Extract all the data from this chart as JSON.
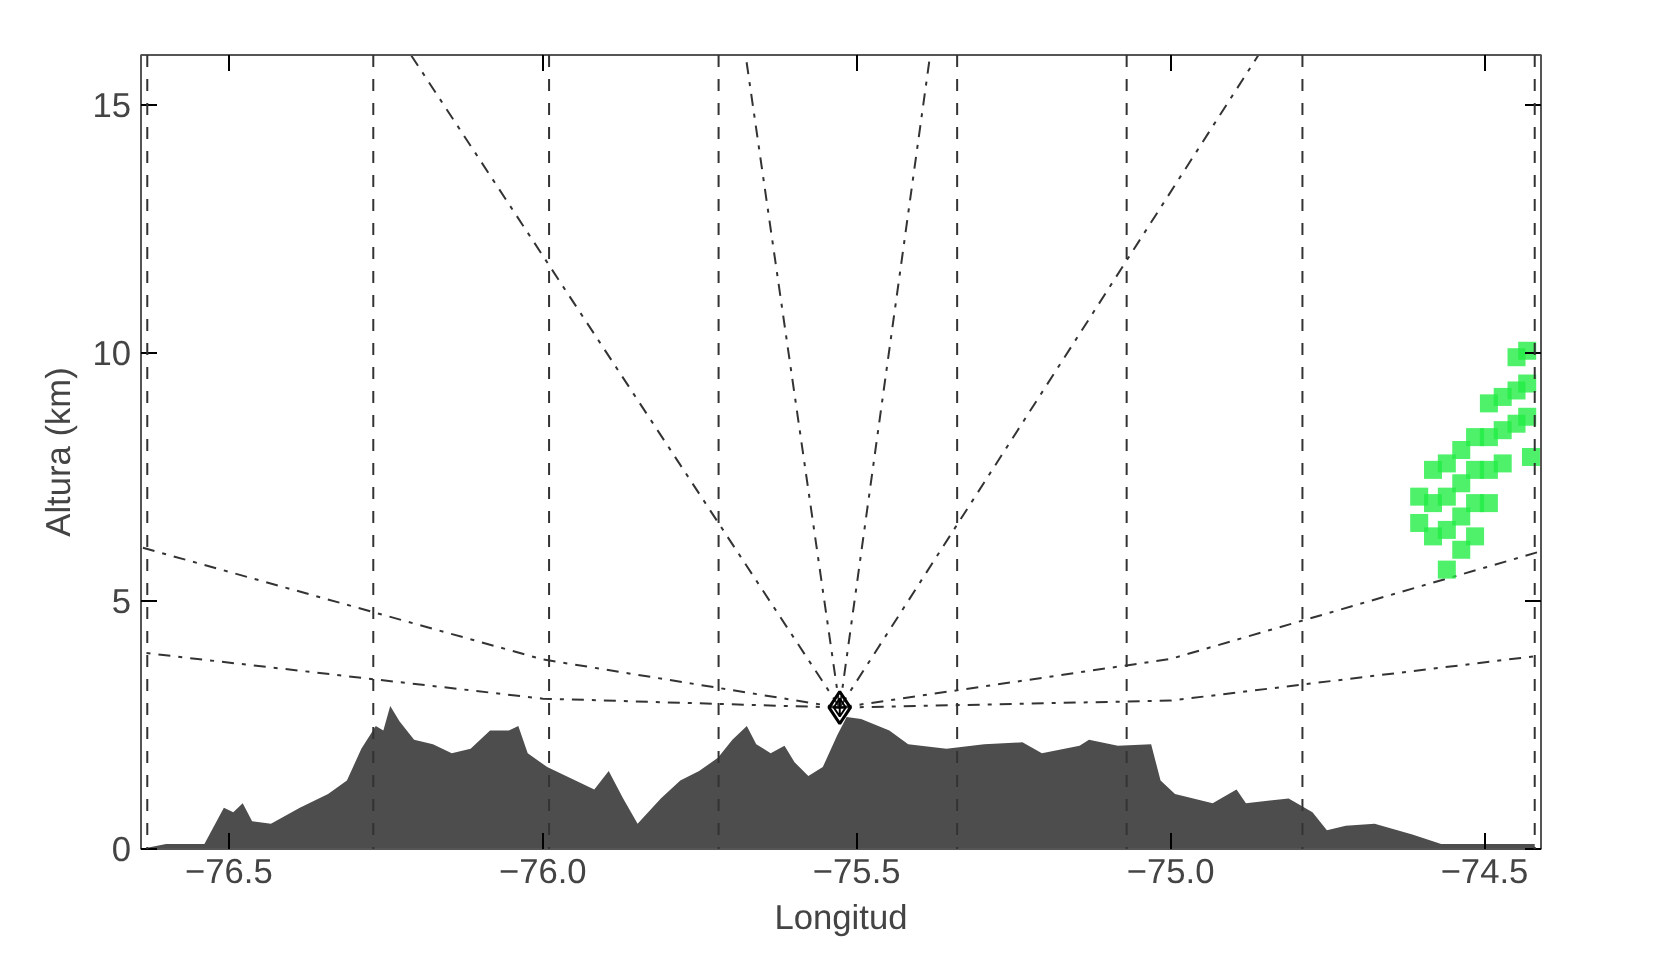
{
  "chart_data": {
    "type": "area",
    "xlabel": "Longitud",
    "ylabel": "Altura (km)",
    "xlim": [
      -76.64,
      -74.41
    ],
    "ylim": [
      0,
      16
    ],
    "xticks": [
      {
        "value": -76.5,
        "label": "−76.5"
      },
      {
        "value": -76.0,
        "label": "−76.0"
      },
      {
        "value": -75.5,
        "label": "−75.5"
      },
      {
        "value": -75.0,
        "label": "−75.0"
      },
      {
        "value": -74.5,
        "label": "−74.5"
      }
    ],
    "yticks": [
      0,
      5,
      10,
      15
    ],
    "grid": false,
    "ref_lines": [
      {
        "axis": "x",
        "value": -76.63,
        "color": "#333333",
        "line_style": "dashed"
      },
      {
        "axis": "x",
        "value": -76.27,
        "color": "#333333",
        "line_style": "dashed"
      },
      {
        "axis": "x",
        "value": -75.99,
        "color": "#333333",
        "line_style": "dashed"
      },
      {
        "axis": "x",
        "value": -75.72,
        "color": "#333333",
        "line_style": "dashed"
      },
      {
        "axis": "x",
        "value": -75.34,
        "color": "#333333",
        "line_style": "dashed"
      },
      {
        "axis": "x",
        "value": -75.07,
        "color": "#333333",
        "line_style": "dashed"
      },
      {
        "axis": "x",
        "value": -74.79,
        "color": "#333333",
        "line_style": "dashed"
      },
      {
        "axis": "x",
        "value": -74.42,
        "color": "#333333",
        "line_style": "dashed"
      }
    ],
    "series": [
      {
        "color": "#4d4d4d",
        "x": [
          -76.64,
          -76.6,
          -76.539,
          -76.508,
          -76.493,
          -76.478,
          -76.463,
          -76.433,
          -76.387,
          -76.342,
          -76.312,
          -76.289,
          -76.266,
          -76.254,
          -76.243,
          -76.228,
          -76.205,
          -76.175,
          -76.145,
          -76.115,
          -76.084,
          -76.054,
          -76.039,
          -76.024,
          -75.993,
          -75.948,
          -75.918,
          -75.895,
          -75.872,
          -75.849,
          -75.812,
          -75.781,
          -75.751,
          -75.721,
          -75.698,
          -75.675,
          -75.66,
          -75.637,
          -75.615,
          -75.599,
          -75.577,
          -75.554,
          -75.531,
          -75.516,
          -75.493,
          -75.448,
          -75.418,
          -75.357,
          -75.297,
          -75.236,
          -75.205,
          -75.145,
          -75.13,
          -75.084,
          -75.031,
          -75.016,
          -74.993,
          -74.933,
          -74.895,
          -74.88,
          -74.812,
          -74.774,
          -74.751,
          -74.721,
          -74.675,
          -74.615,
          -74.569,
          -74.42
        ],
        "values": [
          0.0,
          0.1,
          0.1,
          0.83,
          0.74,
          0.92,
          0.56,
          0.51,
          0.83,
          1.11,
          1.38,
          2.02,
          2.48,
          2.39,
          2.88,
          2.57,
          2.2,
          2.11,
          1.93,
          2.02,
          2.39,
          2.39,
          2.48,
          1.93,
          1.65,
          1.38,
          1.2,
          1.57,
          1.02,
          0.51,
          1.02,
          1.38,
          1.57,
          1.84,
          2.2,
          2.48,
          2.11,
          1.93,
          2.08,
          1.75,
          1.47,
          1.65,
          2.29,
          2.66,
          2.62,
          2.39,
          2.11,
          2.02,
          2.11,
          2.15,
          1.93,
          2.08,
          2.2,
          2.08,
          2.11,
          1.38,
          1.11,
          0.92,
          1.2,
          0.92,
          1.02,
          0.74,
          0.38,
          0.47,
          0.51,
          0.29,
          0.1,
          0.1
        ]
      },
      {
        "type": "line",
        "color": "#333333",
        "line_style": "dashdot",
        "x": [
          -75.527,
          -76.0,
          -76.64
        ],
        "values": [
          2.85,
          3.03,
          3.96
        ]
      },
      {
        "type": "line",
        "color": "#333333",
        "line_style": "dashdot",
        "x": [
          -75.527,
          -76.0,
          -76.64
        ],
        "values": [
          2.85,
          3.82,
          6.08
        ]
      },
      {
        "type": "line",
        "color": "#333333",
        "line_style": "dashdot",
        "x": [
          -75.527,
          -76.21
        ],
        "values": [
          2.85,
          16
        ]
      },
      {
        "type": "line",
        "color": "#333333",
        "line_style": "dashdot",
        "x": [
          -75.527,
          -75.677
        ],
        "values": [
          2.85,
          16
        ]
      },
      {
        "type": "line",
        "color": "#333333",
        "line_style": "dashdot",
        "x": [
          -75.527,
          -75.383
        ],
        "values": [
          2.85,
          16
        ]
      },
      {
        "type": "line",
        "color": "#333333",
        "line_style": "dashdot",
        "x": [
          -75.527,
          -74.86
        ],
        "values": [
          2.85,
          16
        ]
      },
      {
        "type": "line",
        "color": "#333333",
        "line_style": "dashdot",
        "x": [
          -75.527,
          -75.0,
          -74.41
        ],
        "values": [
          2.85,
          2.99,
          3.9
        ]
      },
      {
        "type": "line",
        "color": "#333333",
        "line_style": "dashdot",
        "x": [
          -75.527,
          -75.0,
          -74.41
        ],
        "values": [
          2.85,
          3.83,
          6.0
        ]
      },
      {
        "type": "scatter",
        "marker": "diamond",
        "color": "#000000",
        "x": [
          -75.527
        ],
        "values": [
          2.85
        ]
      },
      {
        "type": "scatter",
        "marker": "square",
        "color": "#22ee44",
        "x": [
          -74.604,
          -74.604,
          -74.582,
          -74.582,
          -74.582,
          -74.56,
          -74.56,
          -74.56,
          -74.56,
          -74.537,
          -74.537,
          -74.537,
          -74.537,
          -74.515,
          -74.515,
          -74.515,
          -74.515,
          -74.493,
          -74.493,
          -74.493,
          -74.493,
          -74.471,
          -74.471,
          -74.471,
          -74.449,
          -74.449,
          -74.449,
          -74.432,
          -74.432,
          -74.432,
          -74.426
        ],
        "values": [
          7.1,
          6.57,
          7.64,
          6.97,
          6.3,
          7.77,
          7.1,
          6.43,
          5.63,
          8.04,
          7.37,
          6.7,
          6.03,
          8.3,
          7.64,
          6.97,
          6.3,
          8.98,
          8.3,
          7.64,
          6.97,
          9.11,
          8.44,
          7.77,
          9.91,
          9.24,
          8.57,
          10.04,
          9.38,
          8.71,
          7.9
        ]
      }
    ]
  }
}
